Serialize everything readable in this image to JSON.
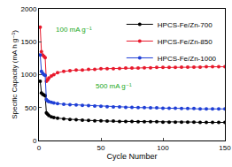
{
  "chart_data": {
    "type": "line",
    "x_label": "Cycle Number",
    "y_label": "Specific Capacity (mA h g⁻¹)",
    "x": [
      1,
      2,
      3,
      4,
      5,
      6,
      7,
      8,
      10,
      12,
      15,
      20,
      25,
      30,
      35,
      40,
      45,
      50,
      55,
      60,
      65,
      70,
      75,
      80,
      85,
      90,
      95,
      100,
      105,
      110,
      115,
      120,
      125,
      130,
      135,
      140,
      145,
      150
    ],
    "series": [
      {
        "name": "HPCS-Fe/Zn-700",
        "color": "#000000",
        "marker": "circle",
        "line_style": "solid",
        "values": [
          900,
          720,
          700,
          690,
          680,
          420,
          400,
          380,
          360,
          350,
          340,
          330,
          320,
          315,
          310,
          305,
          300,
          300,
          295,
          295,
          290,
          290,
          290,
          285,
          285,
          285,
          285,
          280,
          280,
          280,
          280,
          280,
          280,
          275,
          275,
          275,
          275,
          275
        ]
      },
      {
        "name": "HPCS-Fe/Zn-850",
        "color": "#e8192c",
        "marker": "circle",
        "line_style": "solid",
        "values": [
          1720,
          1350,
          1300,
          1280,
          1260,
          900,
          920,
          950,
          980,
          1000,
          1030,
          1050,
          1060,
          1070,
          1070,
          1080,
          1080,
          1090,
          1090,
          1090,
          1095,
          1100,
          1100,
          1100,
          1105,
          1105,
          1110,
          1110,
          1110,
          1110,
          1115,
          1115,
          1115,
          1115,
          1120,
          1120,
          1120,
          1120
        ]
      },
      {
        "name": "HPCS-Fe/Zn-1000",
        "color": "#1f3fd6",
        "marker": "circle",
        "line_style": "solid",
        "values": [
          1300,
          1050,
          1020,
          1000,
          990,
          620,
          600,
          590,
          580,
          570,
          560,
          550,
          545,
          540,
          535,
          530,
          525,
          520,
          515,
          510,
          510,
          505,
          505,
          500,
          500,
          495,
          495,
          490,
          490,
          490,
          485,
          485,
          485,
          480,
          480,
          480,
          480,
          480
        ]
      }
    ],
    "annotations": [
      {
        "text": "100 mA g⁻¹",
        "x": 28,
        "y": 1680
      },
      {
        "text": "500 mA g⁻¹",
        "x": 60,
        "y": 820
      }
    ],
    "xlim": [
      0,
      150
    ],
    "xticks": [
      0,
      50,
      100,
      150
    ],
    "ylim": [
      0,
      2000
    ],
    "yticks": [
      0,
      500,
      1000,
      1500,
      2000
    ],
    "grid": false,
    "legend": "upper right"
  }
}
